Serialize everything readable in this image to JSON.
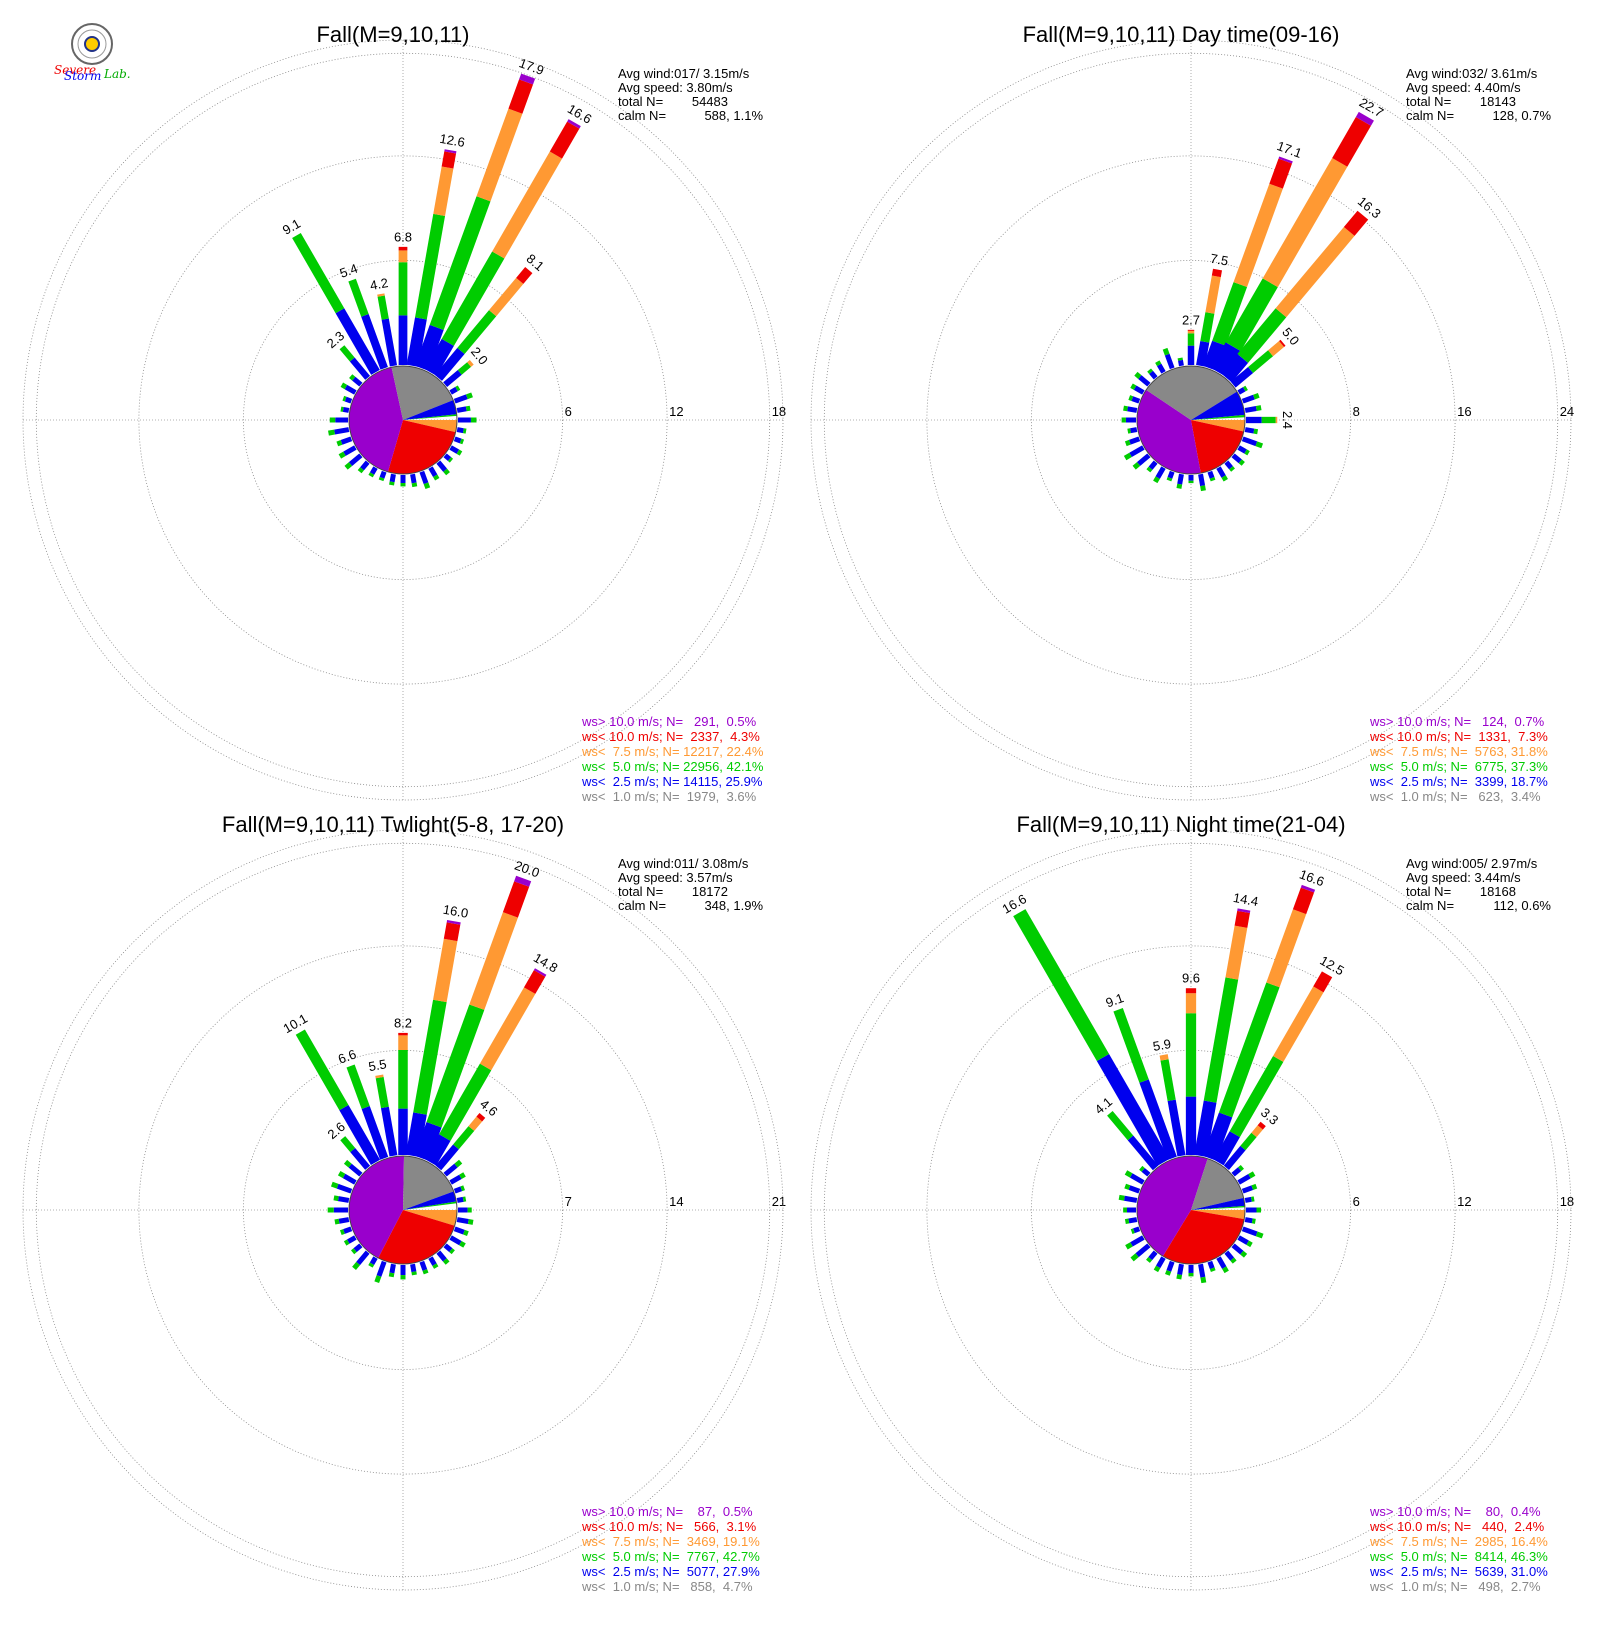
{
  "colors": {
    "gt10": "#9900cc",
    "lt10": "#ee0000",
    "lt7_5": "#ff9933",
    "lt5": "#00cc00",
    "lt2_5": "#0000ee",
    "lt1": "#888888"
  },
  "logo": {
    "line1": "Severe",
    "line2": "Storm",
    "line3": "Lab."
  },
  "chart_data": [
    {
      "type": "windrose",
      "title": "Fall(M=9,10,11)",
      "info": {
        "avg_wind": "Avg wind:017/ 3.15m/s",
        "avg_speed": "Avg speed: 3.80m/s",
        "total_label": "total N=",
        "total": "54483",
        "calm_label": "calm N=",
        "calm": "588,  1.1%"
      },
      "ring_values": [
        "6",
        "12",
        "18"
      ],
      "rmax": 18,
      "labeled_bars": [
        {
          "dir_deg": 330,
          "value": 9.1,
          "label": "9.1",
          "fracs": [
            0.45,
            0.55,
            0,
            0,
            0
          ]
        },
        {
          "dir_deg": 340,
          "value": 5.4,
          "label": "5.4",
          "fracs": [
            0.6,
            0.4,
            0,
            0,
            0
          ]
        },
        {
          "dir_deg": 350,
          "value": 4.2,
          "label": "4.2",
          "fracs": [
            0.65,
            0.32,
            0.03,
            0,
            0
          ]
        },
        {
          "dir_deg": 0,
          "value": 6.8,
          "label": "6.8",
          "fracs": [
            0.42,
            0.45,
            0.1,
            0.03,
            0
          ]
        },
        {
          "dir_deg": 10,
          "value": 12.6,
          "label": "12.6",
          "fracs": [
            0.22,
            0.48,
            0.22,
            0.07,
            0.01
          ]
        },
        {
          "dir_deg": 20,
          "value": 17.9,
          "label": "17.9",
          "fracs": [
            0.14,
            0.44,
            0.3,
            0.1,
            0.02
          ]
        },
        {
          "dir_deg": 30,
          "value": 16.6,
          "label": "16.6",
          "fracs": [
            0.12,
            0.35,
            0.4,
            0.12,
            0.01
          ]
        },
        {
          "dir_deg": 40,
          "value": 8.1,
          "label": "8.1",
          "fracs": [
            0.25,
            0.35,
            0.3,
            0.1,
            0
          ]
        },
        {
          "dir_deg": 50,
          "value": 2.0,
          "label": "2.0",
          "fracs": [
            0.55,
            0.35,
            0.1,
            0,
            0
          ]
        },
        {
          "dir_deg": 320,
          "value": 2.3,
          "label": "2.3",
          "fracs": [
            0.6,
            0.4,
            0,
            0,
            0
          ]
        }
      ],
      "pie": [
        0.036,
        0.259,
        0.421,
        0.224,
        0.043,
        0.005
      ],
      "legend": [
        {
          "key": "gt10",
          "text": "ws> 10.0 m/s; N=   291,  0.5%"
        },
        {
          "key": "lt10",
          "text": "ws< 10.0 m/s; N=  2337,  4.3%"
        },
        {
          "key": "lt7_5",
          "text": "ws<  7.5 m/s; N= 12217, 22.4%"
        },
        {
          "key": "lt5",
          "text": "ws<  5.0 m/s; N= 22956, 42.1%"
        },
        {
          "key": "lt2_5",
          "text": "ws<  2.5 m/s; N= 14115, 25.9%"
        },
        {
          "key": "lt1",
          "text": "ws<  1.0 m/s; N=  1979,  3.6%"
        }
      ]
    },
    {
      "type": "windrose",
      "title": "Fall(M=9,10,11) Day time(09-16)",
      "info": {
        "avg_wind": "Avg wind:032/ 3.61m/s",
        "avg_speed": "Avg speed: 4.40m/s",
        "total_label": "total N=",
        "total": "18143",
        "calm_label": "calm N=",
        "calm": "128,  0.7%"
      },
      "ring_values": [
        "8",
        "16",
        "24"
      ],
      "rmax": 24,
      "labeled_bars": [
        {
          "dir_deg": 0,
          "value": 2.7,
          "label": "2.7",
          "fracs": [
            0.55,
            0.35,
            0.07,
            0.03,
            0
          ]
        },
        {
          "dir_deg": 10,
          "value": 7.5,
          "label": "7.5",
          "fracs": [
            0.25,
            0.3,
            0.38,
            0.07,
            0
          ]
        },
        {
          "dir_deg": 20,
          "value": 17.1,
          "label": "17.1",
          "fracs": [
            0.12,
            0.28,
            0.47,
            0.12,
            0.01
          ]
        },
        {
          "dir_deg": 30,
          "value": 22.7,
          "label": "22.7",
          "fracs": [
            0.1,
            0.25,
            0.47,
            0.16,
            0.02
          ]
        },
        {
          "dir_deg": 40,
          "value": 16.3,
          "label": "16.3",
          "fracs": [
            0.12,
            0.28,
            0.5,
            0.1,
            0
          ]
        },
        {
          "dir_deg": 50,
          "value": 5.0,
          "label": "5.0",
          "fracs": [
            0.35,
            0.4,
            0.22,
            0.03,
            0
          ]
        },
        {
          "dir_deg": 90,
          "value": 2.4,
          "label": "2.4",
          "fracs": [
            0.5,
            0.45,
            0.05,
            0,
            0
          ]
        }
      ],
      "pie": [
        0.034,
        0.187,
        0.373,
        0.318,
        0.073,
        0.007
      ],
      "legend": [
        {
          "key": "gt10",
          "text": "ws> 10.0 m/s; N=   124,  0.7%"
        },
        {
          "key": "lt10",
          "text": "ws< 10.0 m/s; N=  1331,  7.3%"
        },
        {
          "key": "lt7_5",
          "text": "ws<  7.5 m/s; N=  5763, 31.8%"
        },
        {
          "key": "lt5",
          "text": "ws<  5.0 m/s; N=  6775, 37.3%"
        },
        {
          "key": "lt2_5",
          "text": "ws<  2.5 m/s; N=  3399, 18.7%"
        },
        {
          "key": "lt1",
          "text": "ws<  1.0 m/s; N=   623,  3.4%"
        }
      ]
    },
    {
      "type": "windrose",
      "title": "Fall(M=9,10,11) Twlight(5-8, 17-20)",
      "info": {
        "avg_wind": "Avg wind:011/ 3.08m/s",
        "avg_speed": "Avg speed: 3.57m/s",
        "total_label": "total N=",
        "total": "18172",
        "calm_label": "calm N=",
        "calm": "348,  1.9%"
      },
      "ring_values": [
        "7",
        "14",
        "21"
      ],
      "rmax": 21,
      "labeled_bars": [
        {
          "dir_deg": 330,
          "value": 10.1,
          "label": "10.1",
          "fracs": [
            0.42,
            0.58,
            0,
            0,
            0
          ]
        },
        {
          "dir_deg": 340,
          "value": 6.6,
          "label": "6.6",
          "fracs": [
            0.55,
            0.45,
            0,
            0,
            0
          ]
        },
        {
          "dir_deg": 350,
          "value": 5.5,
          "label": "5.5",
          "fracs": [
            0.6,
            0.37,
            0.03,
            0,
            0
          ]
        },
        {
          "dir_deg": 0,
          "value": 8.2,
          "label": "8.2",
          "fracs": [
            0.38,
            0.48,
            0.12,
            0.02,
            0
          ]
        },
        {
          "dir_deg": 10,
          "value": 16.0,
          "label": "16.0",
          "fracs": [
            0.18,
            0.48,
            0.26,
            0.07,
            0.01
          ]
        },
        {
          "dir_deg": 20,
          "value": 20.0,
          "label": "20.0",
          "fracs": [
            0.12,
            0.42,
            0.33,
            0.11,
            0.02
          ]
        },
        {
          "dir_deg": 30,
          "value": 14.8,
          "label": "14.8",
          "fracs": [
            0.13,
            0.37,
            0.4,
            0.09,
            0.01
          ]
        },
        {
          "dir_deg": 40,
          "value": 4.6,
          "label": "4.6",
          "fracs": [
            0.4,
            0.35,
            0.18,
            0.07,
            0
          ]
        },
        {
          "dir_deg": 320,
          "value": 2.6,
          "label": "2.6",
          "fracs": [
            0.6,
            0.4,
            0,
            0,
            0
          ]
        }
      ],
      "pie": [
        0.047,
        0.279,
        0.427,
        0.191,
        0.031,
        0.005
      ],
      "legend": [
        {
          "key": "gt10",
          "text": "ws> 10.0 m/s; N=    87,  0.5%"
        },
        {
          "key": "lt10",
          "text": "ws< 10.0 m/s; N=   566,  3.1%"
        },
        {
          "key": "lt7_5",
          "text": "ws<  7.5 m/s; N=  3469, 19.1%"
        },
        {
          "key": "lt5",
          "text": "ws<  5.0 m/s; N=  7767, 42.7%"
        },
        {
          "key": "lt2_5",
          "text": "ws<  2.5 m/s; N=  5077, 27.9%"
        },
        {
          "key": "lt1",
          "text": "ws<  1.0 m/s; N=   858,  4.7%"
        }
      ]
    },
    {
      "type": "windrose",
      "title": "Fall(M=9,10,11) Night time(21-04)",
      "info": {
        "avg_wind": "Avg wind:005/ 2.97m/s",
        "avg_speed": "Avg speed: 3.44m/s",
        "total_label": "total N=",
        "total": "18168",
        "calm_label": "calm N=",
        "calm": "112,  0.6%"
      },
      "ring_values": [
        "6",
        "12",
        "18"
      ],
      "rmax": 18,
      "labeled_bars": [
        {
          "dir_deg": 330,
          "value": 16.6,
          "label": "16.6",
          "fracs": [
            0.42,
            0.58,
            0,
            0,
            0
          ]
        },
        {
          "dir_deg": 340,
          "value": 9.1,
          "label": "9.1",
          "fracs": [
            0.52,
            0.48,
            0,
            0,
            0
          ]
        },
        {
          "dir_deg": 350,
          "value": 5.9,
          "label": "5.9",
          "fracs": [
            0.55,
            0.4,
            0.05,
            0,
            0
          ]
        },
        {
          "dir_deg": 0,
          "value": 9.6,
          "label": "9.6",
          "fracs": [
            0.35,
            0.5,
            0.12,
            0.03,
            0
          ]
        },
        {
          "dir_deg": 10,
          "value": 14.4,
          "label": "14.4",
          "fracs": [
            0.22,
            0.5,
            0.21,
            0.06,
            0.01
          ]
        },
        {
          "dir_deg": 20,
          "value": 16.6,
          "label": "16.6",
          "fracs": [
            0.16,
            0.48,
            0.27,
            0.08,
            0.01
          ]
        },
        {
          "dir_deg": 30,
          "value": 12.5,
          "label": "12.5",
          "fracs": [
            0.15,
            0.4,
            0.37,
            0.08,
            0
          ]
        },
        {
          "dir_deg": 40,
          "value": 3.3,
          "label": "3.3",
          "fracs": [
            0.45,
            0.3,
            0.17,
            0.08,
            0
          ]
        },
        {
          "dir_deg": 320,
          "value": 4.1,
          "label": "4.1",
          "fracs": [
            0.55,
            0.45,
            0,
            0,
            0
          ]
        }
      ],
      "pie": [
        0.027,
        0.31,
        0.463,
        0.164,
        0.024,
        0.004
      ],
      "legend": [
        {
          "key": "gt10",
          "text": "ws> 10.0 m/s; N=    80,  0.4%"
        },
        {
          "key": "lt10",
          "text": "ws< 10.0 m/s; N=   440,  2.4%"
        },
        {
          "key": "lt7_5",
          "text": "ws<  7.5 m/s; N=  2985, 16.4%"
        },
        {
          "key": "lt5",
          "text": "ws<  5.0 m/s; N=  8414, 46.3%"
        },
        {
          "key": "lt2_5",
          "text": "ws<  2.5 m/s; N=  5639, 31.0%"
        },
        {
          "key": "lt1",
          "text": "ws<  1.0 m/s; N=   498,  2.7%"
        }
      ]
    }
  ]
}
